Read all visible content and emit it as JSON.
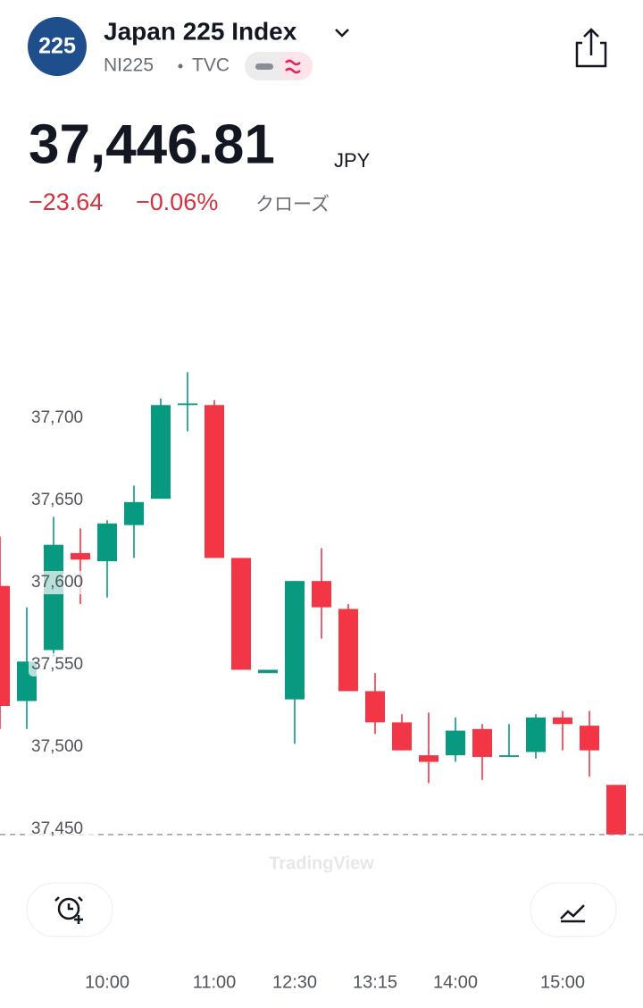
{
  "header": {
    "logo": "225",
    "title": "Japan 225 Index",
    "symbol": "NI225",
    "exchange": "TVC",
    "price": "37,446.81",
    "currency": "JPY",
    "change": "−23.64",
    "change_percent": "−0.06%",
    "status": "クローズ"
  },
  "chart_data": {
    "type": "candlestick",
    "watermark": "TradingView",
    "categories": [
      null,
      null,
      null,
      null,
      "10:00",
      null,
      null,
      null,
      "11:00",
      null,
      null,
      "12:30",
      null,
      null,
      "13:15",
      null,
      null,
      "14:00",
      null,
      null,
      null,
      "15:00",
      null,
      null
    ],
    "open": [
      37598,
      37528,
      37559,
      37618,
      37613,
      37635,
      37651,
      37708,
      37708,
      37615,
      37545,
      37529,
      37601,
      37584,
      37534,
      37515,
      37495,
      37495,
      37511,
      37494,
      37497,
      37518,
      37513,
      37477
    ],
    "high": [
      37628,
      37585,
      37640,
      37633,
      37638,
      37659,
      37712,
      37728,
      37711,
      37615,
      37547,
      37601,
      37621,
      37587,
      37545,
      37520,
      37521,
      37518,
      37514,
      37514,
      37520,
      37522,
      37522,
      37477
    ],
    "low": [
      37511,
      37511,
      37555,
      37587,
      37591,
      37615,
      37651,
      37692,
      37615,
      37547,
      37545,
      37502,
      37566,
      37534,
      37508,
      37498,
      37478,
      37491,
      37480,
      37494,
      37493,
      37498,
      37482,
      37446.81
    ],
    "close": [
      37525,
      37552,
      37623,
      37614,
      37636,
      37649,
      37708,
      37709,
      37615,
      37547,
      37547,
      37601,
      37585,
      37534,
      37515,
      37498,
      37491,
      37510,
      37494,
      37495,
      37518,
      37514,
      37498,
      37446.81
    ],
    "up_color": "#089981",
    "down_color": "#f23645",
    "ylim": [
      37440,
      37740
    ],
    "yticks": [
      {
        "value": 37450,
        "label": "37,450"
      },
      {
        "value": 37500,
        "label": "37,500"
      },
      {
        "value": 37550,
        "label": "37,550"
      },
      {
        "value": 37600,
        "label": "37,600"
      },
      {
        "value": 37650,
        "label": "37,650"
      },
      {
        "value": 37700,
        "label": "37,700"
      }
    ],
    "last_price_line": true
  }
}
